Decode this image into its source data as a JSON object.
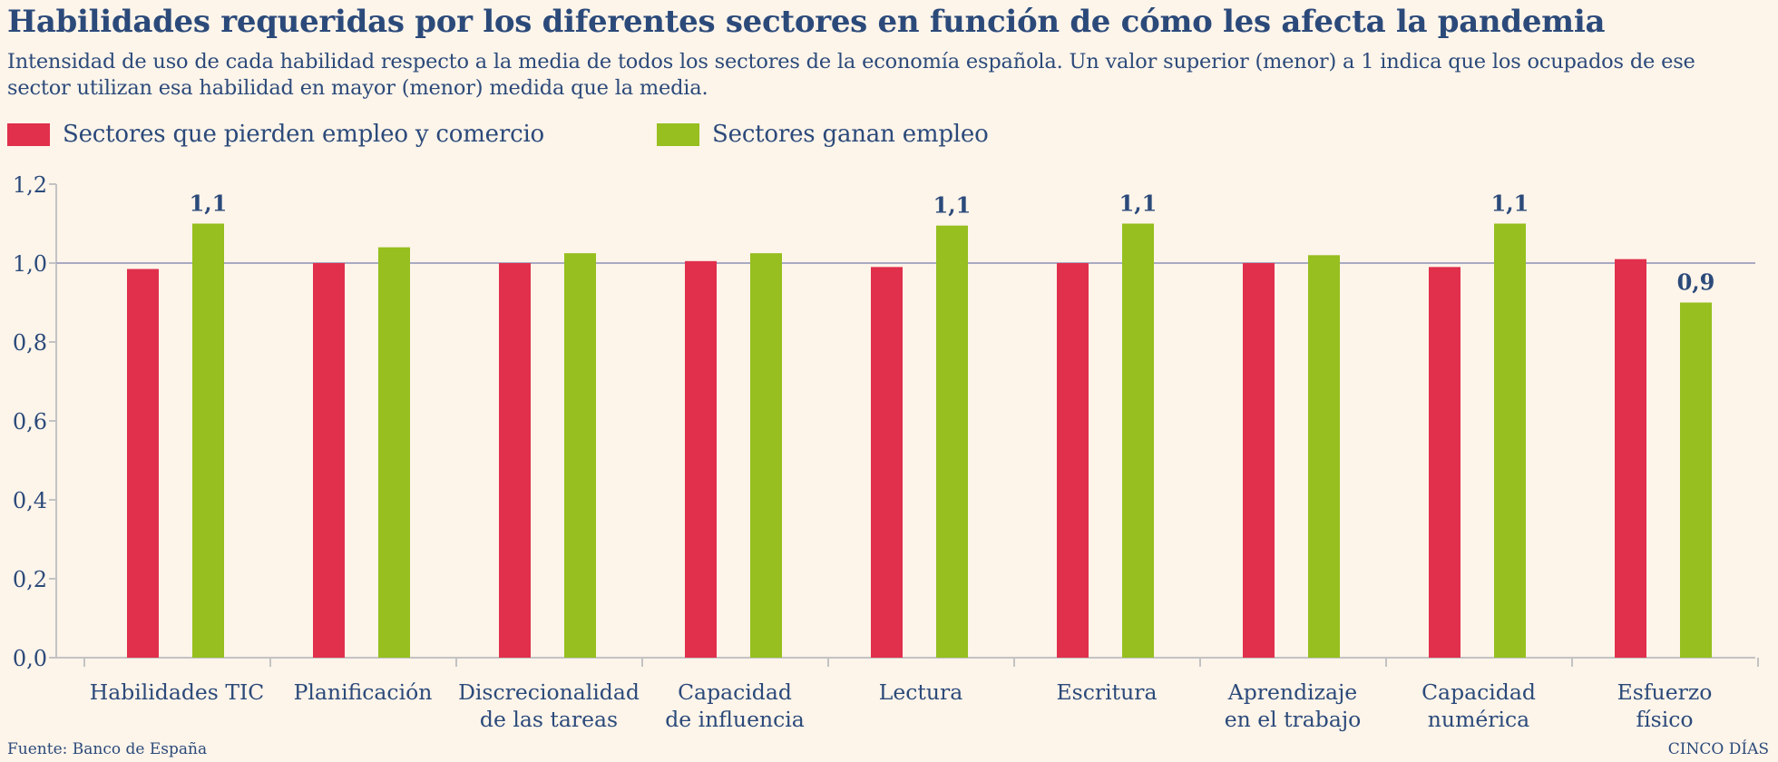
{
  "header": {
    "title": "Habilidades requeridas por los diferentes sectores en función de cómo les afecta la pandemia",
    "subtitle": "Intensidad de uso de cada habilidad respecto a la media de todos los sectores de la economía española. Un valor superior (menor) a 1 indica que los ocupados de ese sector utilizan esa habilidad en mayor (menor) medida que la media."
  },
  "legend": {
    "items": [
      {
        "label": "Sectores que pierden empleo y comercio",
        "color": "#e0304c"
      },
      {
        "label": "Sectores ganan empleo",
        "color": "#96bf1f"
      }
    ]
  },
  "footer": {
    "source": "Fuente: Banco de España",
    "brand": "CINCO DÍAS"
  },
  "chart_data": {
    "type": "bar",
    "categories": [
      [
        "Habilidades TIC"
      ],
      [
        "Planificación"
      ],
      [
        "Discrecionalidad",
        "de las tareas"
      ],
      [
        "Capacidad",
        "de influencia"
      ],
      [
        "Lectura"
      ],
      [
        "Escritura"
      ],
      [
        "Aprendizaje",
        "en el trabajo"
      ],
      [
        "Capacidad",
        "numérica"
      ],
      [
        "Esfuerzo",
        "físico"
      ]
    ],
    "series": [
      {
        "name": "Sectores que pierden empleo y comercio",
        "color": "#e0304c",
        "values": [
          0.985,
          1.0,
          1.0,
          1.005,
          0.99,
          1.0,
          1.0,
          0.99,
          1.01
        ],
        "labels": [
          "",
          "",
          "",
          "",
          "",
          "",
          "",
          "",
          ""
        ]
      },
      {
        "name": "Sectores ganan empleo",
        "color": "#96bf1f",
        "values": [
          1.1,
          1.04,
          1.025,
          1.025,
          1.095,
          1.1,
          1.02,
          1.1,
          0.9
        ],
        "labels": [
          "1,1",
          "",
          "",
          "",
          "1,1",
          "1,1",
          "",
          "1,1",
          "0,9"
        ]
      }
    ],
    "ylim": [
      0,
      1.2
    ],
    "yticks": [
      "0,0",
      "0,2",
      "0,4",
      "0,6",
      "0,8",
      "1,0",
      "1,2"
    ],
    "reference_line": 1.0,
    "colors": {
      "axis": "#c3c3c3",
      "reference": "#a9a9c2",
      "text": "#2b4a7a"
    }
  }
}
